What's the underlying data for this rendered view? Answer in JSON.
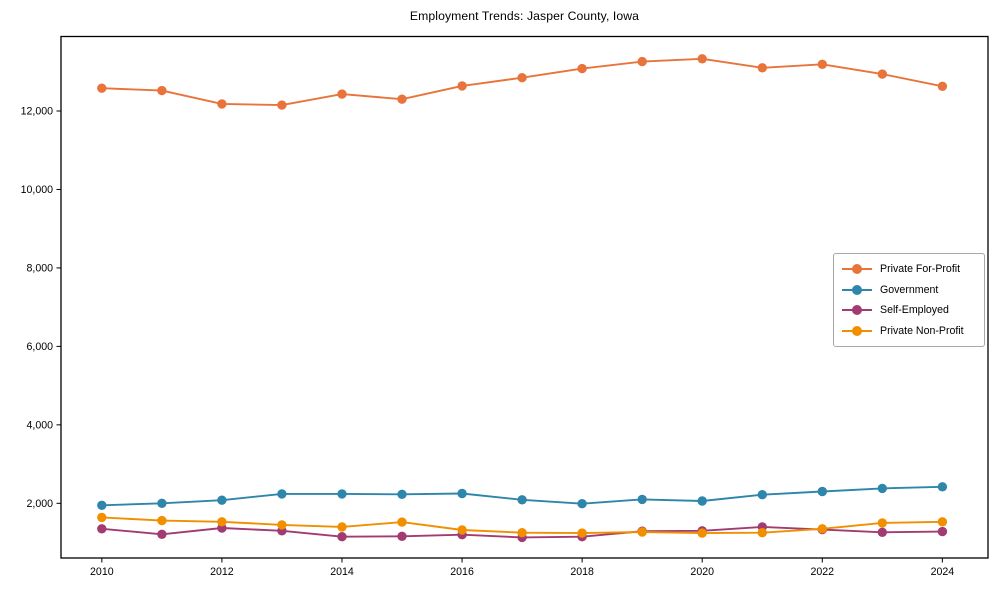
{
  "figure": {
    "title": "Employment Trends: Jasper County, Iowa"
  },
  "chart_data": {
    "type": "line",
    "title": "Employment Trends: Jasper County, Iowa",
    "xlabel": "",
    "ylabel": "",
    "grid": false,
    "marker": "circle",
    "legend_position": "center right",
    "x": [
      2010,
      2011,
      2012,
      2013,
      2014,
      2015,
      2016,
      2017,
      2018,
      2019,
      2020,
      2021,
      2022,
      2023,
      2024
    ],
    "series": [
      {
        "name": "Private For-Profit",
        "color": "#E8743B",
        "values": [
          12580,
          12520,
          12180,
          12150,
          12430,
          12300,
          12640,
          12850,
          13080,
          13260,
          13330,
          13100,
          13190,
          12940,
          12630
        ]
      },
      {
        "name": "Government",
        "color": "#2E86AB",
        "values": [
          1950,
          2000,
          2080,
          2240,
          2240,
          2230,
          2250,
          2090,
          1990,
          2100,
          2060,
          2220,
          2300,
          2380,
          2420
        ]
      },
      {
        "name": "Self-Employed",
        "color": "#A23B72",
        "values": [
          1350,
          1210,
          1370,
          1300,
          1150,
          1160,
          1200,
          1130,
          1150,
          1290,
          1300,
          1400,
          1330,
          1260,
          1280
        ]
      },
      {
        "name": "Private Non-Profit",
        "color": "#F18F01",
        "values": [
          1640,
          1560,
          1530,
          1450,
          1400,
          1520,
          1320,
          1250,
          1240,
          1270,
          1240,
          1250,
          1350,
          1500,
          1530
        ]
      }
    ],
    "xlim": [
      2009.32,
      2024.76
    ],
    "ylim": [
      606,
      13899
    ],
    "xticks": {
      "values": [
        2010,
        2012,
        2014,
        2016,
        2018,
        2020,
        2022,
        2024
      ],
      "labels": [
        "2010",
        "2012",
        "2014",
        "2016",
        "2018",
        "2020",
        "2022",
        "2024"
      ]
    },
    "yticks": {
      "values": [
        2000,
        4000,
        6000,
        8000,
        10000,
        12000
      ],
      "labels": [
        "2,000",
        "4,000",
        "6,000",
        "8,000",
        "10,000",
        "12,000"
      ]
    }
  }
}
